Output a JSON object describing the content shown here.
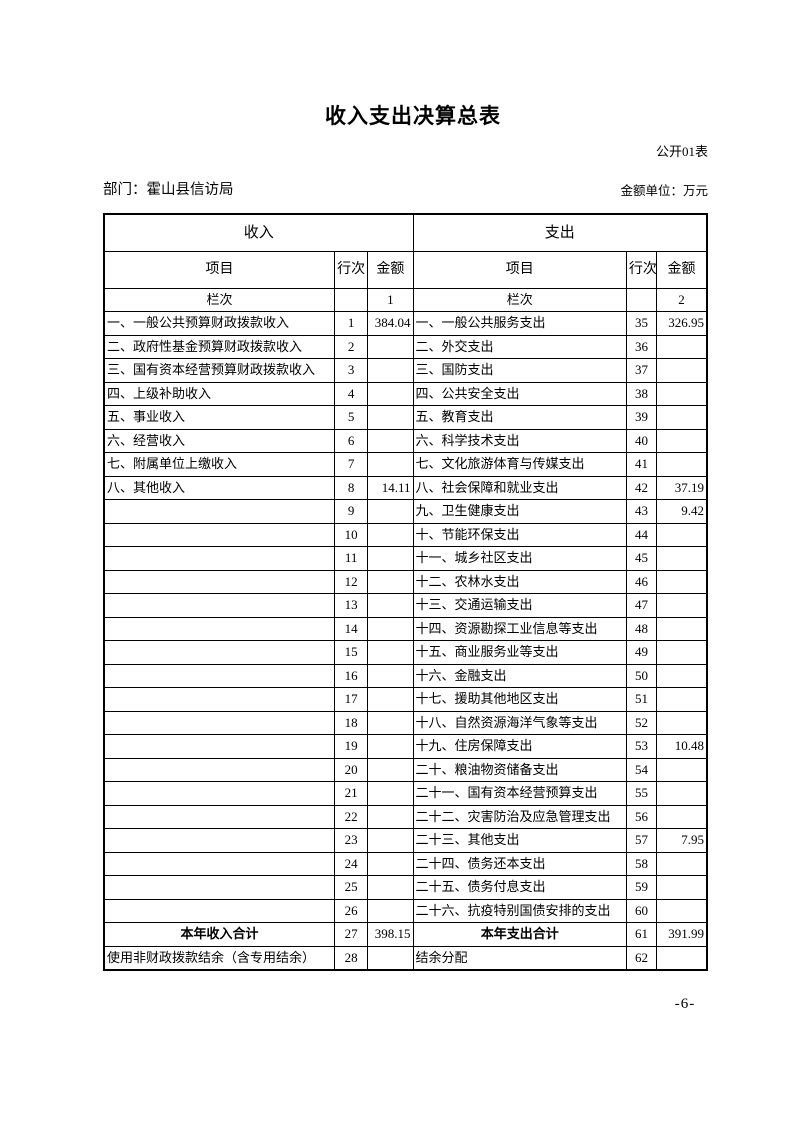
{
  "page": {
    "title": "收入支出决算总表",
    "table_code": "公开01表",
    "department_label": "部门：霍山县信访局",
    "unit_label": "金额单位：万元",
    "page_number": "-6-"
  },
  "table": {
    "income_header": "收入",
    "expense_header": "支出",
    "col_item": "项目",
    "col_line": "行次",
    "col_amount": "金额",
    "lanci_label": "栏次",
    "income_col_number": "1",
    "expense_col_number": "2",
    "rows": [
      {
        "income_item": "一、一般公共预算财政拨款收入",
        "income_line": "1",
        "income_amount": "384.04",
        "expense_item": "一、一般公共服务支出",
        "expense_line": "35",
        "expense_amount": "326.95"
      },
      {
        "income_item": "二、政府性基金预算财政拨款收入",
        "income_line": "2",
        "income_amount": "",
        "expense_item": "二、外交支出",
        "expense_line": "36",
        "expense_amount": ""
      },
      {
        "income_item": "三、国有资本经营预算财政拨款收入",
        "income_line": "3",
        "income_amount": "",
        "expense_item": "三、国防支出",
        "expense_line": "37",
        "expense_amount": ""
      },
      {
        "income_item": "四、上级补助收入",
        "income_line": "4",
        "income_amount": "",
        "expense_item": "四、公共安全支出",
        "expense_line": "38",
        "expense_amount": ""
      },
      {
        "income_item": "五、事业收入",
        "income_line": "5",
        "income_amount": "",
        "expense_item": "五、教育支出",
        "expense_line": "39",
        "expense_amount": ""
      },
      {
        "income_item": "六、经营收入",
        "income_line": "6",
        "income_amount": "",
        "expense_item": "六、科学技术支出",
        "expense_line": "40",
        "expense_amount": ""
      },
      {
        "income_item": "七、附属单位上缴收入",
        "income_line": "7",
        "income_amount": "",
        "expense_item": "七、文化旅游体育与传媒支出",
        "expense_line": "41",
        "expense_amount": ""
      },
      {
        "income_item": "八、其他收入",
        "income_line": "8",
        "income_amount": "14.11",
        "expense_item": "八、社会保障和就业支出",
        "expense_line": "42",
        "expense_amount": "37.19"
      },
      {
        "income_item": "",
        "income_line": "9",
        "income_amount": "",
        "expense_item": "九、卫生健康支出",
        "expense_line": "43",
        "expense_amount": "9.42"
      },
      {
        "income_item": "",
        "income_line": "10",
        "income_amount": "",
        "expense_item": "十、节能环保支出",
        "expense_line": "44",
        "expense_amount": ""
      },
      {
        "income_item": "",
        "income_line": "11",
        "income_amount": "",
        "expense_item": "十一、城乡社区支出",
        "expense_line": "45",
        "expense_amount": ""
      },
      {
        "income_item": "",
        "income_line": "12",
        "income_amount": "",
        "expense_item": "十二、农林水支出",
        "expense_line": "46",
        "expense_amount": ""
      },
      {
        "income_item": "",
        "income_line": "13",
        "income_amount": "",
        "expense_item": "十三、交通运输支出",
        "expense_line": "47",
        "expense_amount": ""
      },
      {
        "income_item": "",
        "income_line": "14",
        "income_amount": "",
        "expense_item": "十四、资源勘探工业信息等支出",
        "expense_line": "48",
        "expense_amount": ""
      },
      {
        "income_item": "",
        "income_line": "15",
        "income_amount": "",
        "expense_item": "十五、商业服务业等支出",
        "expense_line": "49",
        "expense_amount": ""
      },
      {
        "income_item": "",
        "income_line": "16",
        "income_amount": "",
        "expense_item": "十六、金融支出",
        "expense_line": "50",
        "expense_amount": ""
      },
      {
        "income_item": "",
        "income_line": "17",
        "income_amount": "",
        "expense_item": "十七、援助其他地区支出",
        "expense_line": "51",
        "expense_amount": ""
      },
      {
        "income_item": "",
        "income_line": "18",
        "income_amount": "",
        "expense_item": "十八、自然资源海洋气象等支出",
        "expense_line": "52",
        "expense_amount": ""
      },
      {
        "income_item": "",
        "income_line": "19",
        "income_amount": "",
        "expense_item": "十九、住房保障支出",
        "expense_line": "53",
        "expense_amount": "10.48"
      },
      {
        "income_item": "",
        "income_line": "20",
        "income_amount": "",
        "expense_item": "二十、粮油物资储备支出",
        "expense_line": "54",
        "expense_amount": ""
      },
      {
        "income_item": "",
        "income_line": "21",
        "income_amount": "",
        "expense_item": "二十一、国有资本经营预算支出",
        "expense_line": "55",
        "expense_amount": ""
      },
      {
        "income_item": "",
        "income_line": "22",
        "income_amount": "",
        "expense_item": "二十二、灾害防治及应急管理支出",
        "expense_line": "56",
        "expense_amount": ""
      },
      {
        "income_item": "",
        "income_line": "23",
        "income_amount": "",
        "expense_item": "二十三、其他支出",
        "expense_line": "57",
        "expense_amount": "7.95"
      },
      {
        "income_item": "",
        "income_line": "24",
        "income_amount": "",
        "expense_item": "二十四、债务还本支出",
        "expense_line": "58",
        "expense_amount": ""
      },
      {
        "income_item": "",
        "income_line": "25",
        "income_amount": "",
        "expense_item": "二十五、债务付息支出",
        "expense_line": "59",
        "expense_amount": ""
      },
      {
        "income_item": "",
        "income_line": "26",
        "income_amount": "",
        "expense_item": "二十六、抗疫特别国债安排的支出",
        "expense_line": "60",
        "expense_amount": ""
      },
      {
        "income_item": "本年收入合计",
        "income_line": "27",
        "income_amount": "398.15",
        "expense_item": "本年支出合计",
        "expense_line": "61",
        "expense_amount": "391.99"
      },
      {
        "income_item": "使用非财政拨款结余（含专用结余）",
        "income_line": "28",
        "income_amount": "",
        "expense_item": "结余分配",
        "expense_line": "62",
        "expense_amount": ""
      }
    ]
  }
}
